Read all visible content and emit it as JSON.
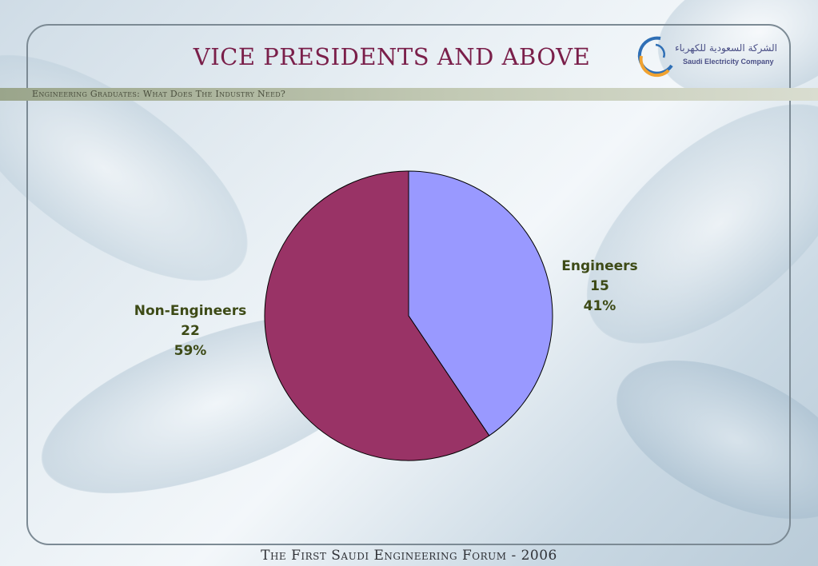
{
  "slide": {
    "title": "VICE  PRESIDENTS AND ABOVE",
    "subtitle": "Engineering Graduates: What Does The Industry Need?",
    "footer": "The First Saudi Engineering Forum - 2006"
  },
  "logo": {
    "arabic": "الشركة السعودية للكهرباء",
    "english": "Saudi Electricity Company"
  },
  "chart_data": {
    "type": "pie",
    "categories": [
      "Engineers",
      "Non-Engineers"
    ],
    "values": [
      15,
      22
    ],
    "percentages": [
      "41%",
      "59%"
    ],
    "colors": [
      "#9999ff",
      "#993366"
    ],
    "labels": [
      {
        "name": "Engineers",
        "value": "15",
        "percent": "41%"
      },
      {
        "name": "Non-Engineers",
        "value": "22",
        "percent": "59%"
      }
    ]
  }
}
